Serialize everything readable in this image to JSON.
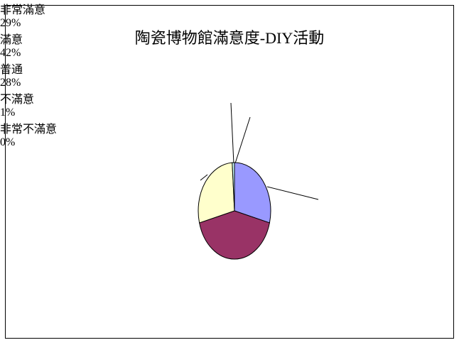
{
  "chart_data": {
    "type": "pie",
    "title": "陶瓷博物館滿意度-DIY活動",
    "categories": [
      "非常滿意",
      "滿意",
      "普通",
      "不滿意",
      "非常不滿意"
    ],
    "values": [
      29,
      42,
      28,
      1,
      0
    ],
    "value_labels": [
      "29%",
      "42%",
      "28%",
      "1%",
      "0%"
    ],
    "colors": [
      "#9999ff",
      "#993366",
      "#ffffcc",
      "#ccffff",
      "#660066"
    ]
  }
}
